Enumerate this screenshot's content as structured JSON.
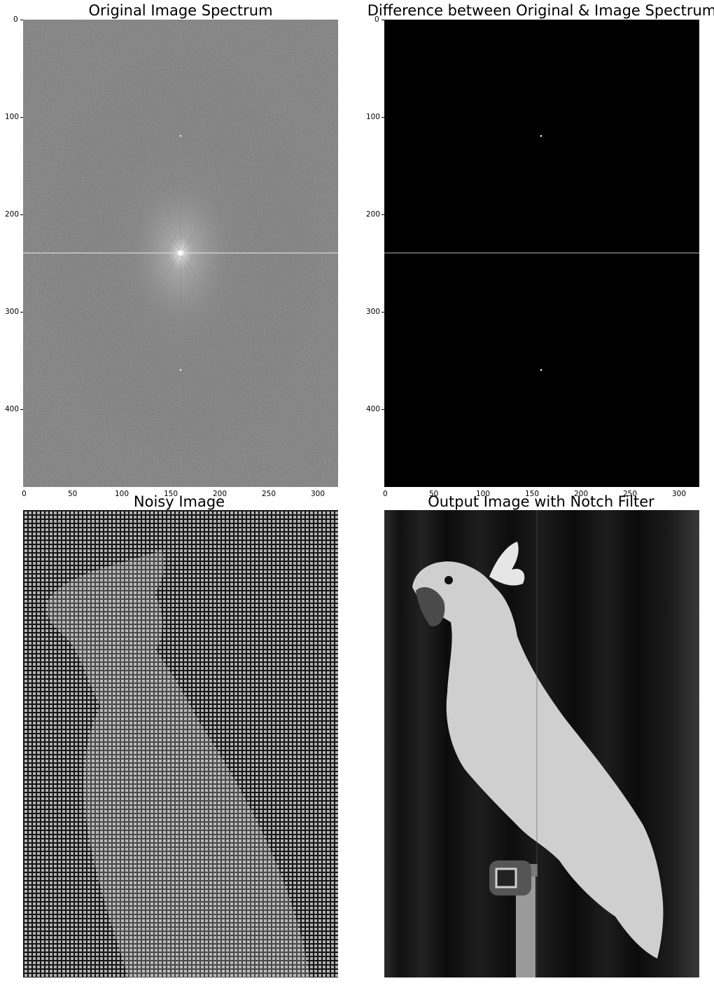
{
  "panels": {
    "spectrum": {
      "title": "Original Image Spectrum",
      "y_ticks": [
        "0",
        "100",
        "200",
        "300",
        "400"
      ],
      "x_ticks": [
        "0",
        "50",
        "100",
        "150",
        "200",
        "250",
        "300"
      ]
    },
    "difference": {
      "title": "Difference between Original & Image Spectrum",
      "y_ticks": [
        "0",
        "100",
        "200",
        "300",
        "400"
      ],
      "x_ticks": [
        "0",
        "50",
        "100",
        "150",
        "200",
        "250",
        "300"
      ]
    },
    "noisy": {
      "title": "Noisy Image"
    },
    "output": {
      "title": "Output Image with Notch Filter"
    }
  }
}
